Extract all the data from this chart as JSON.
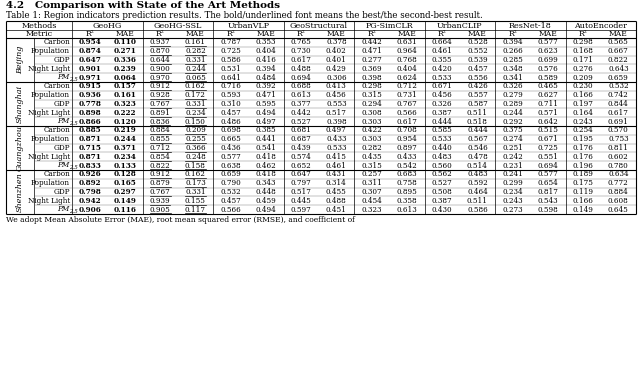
{
  "title_line1": "4.2   Comparison with State of the Art Methods",
  "caption": "Table 1: Region indicators prediction results. The bold/underlined font means the best/the second-best result.",
  "methods": [
    "GeoHG",
    "GeoHG-SSL",
    "UrbanVLP",
    "GeoStructural",
    "PG-SimCLR",
    "UrbanCLIP",
    "ResNet-18",
    "AutoEncoder"
  ],
  "cities": [
    "Beijing",
    "Shanghai",
    "Guangzhou",
    "Shenzhen"
  ],
  "indicators": [
    "Carbon",
    "Population",
    "GDP",
    "Night Light",
    "PM2.5"
  ],
  "data": {
    "Beijing": {
      "Carbon": {
        "GeoHG": [
          0.954,
          0.11
        ],
        "GeoHG-SSL": [
          0.937,
          0.161
        ],
        "UrbanVLP": [
          0.787,
          0.353
        ],
        "GeoStructural": [
          0.765,
          0.378
        ],
        "PG-SimCLR": [
          0.442,
          0.631
        ],
        "UrbanCLIP": [
          0.664,
          0.528
        ],
        "ResNet-18": [
          0.394,
          0.577
        ],
        "AutoEncoder": [
          0.298,
          0.565
        ]
      },
      "Population": {
        "GeoHG": [
          0.874,
          0.271
        ],
        "GeoHG-SSL": [
          0.87,
          0.282
        ],
        "UrbanVLP": [
          0.725,
          0.404
        ],
        "GeoStructural": [
          0.73,
          0.402
        ],
        "PG-SimCLR": [
          0.471,
          0.964
        ],
        "UrbanCLIP": [
          0.461,
          0.552
        ],
        "ResNet-18": [
          0.266,
          0.623
        ],
        "AutoEncoder": [
          0.168,
          0.667
        ]
      },
      "GDP": {
        "GeoHG": [
          0.647,
          0.336
        ],
        "GeoHG-SSL": [
          0.644,
          0.331
        ],
        "UrbanVLP": [
          0.586,
          0.416
        ],
        "GeoStructural": [
          0.617,
          0.401
        ],
        "PG-SimCLR": [
          0.277,
          0.768
        ],
        "UrbanCLIP": [
          0.355,
          0.539
        ],
        "ResNet-18": [
          0.285,
          0.699
        ],
        "AutoEncoder": [
          0.171,
          0.822
        ]
      },
      "Night Light": {
        "GeoHG": [
          0.901,
          0.239
        ],
        "GeoHG-SSL": [
          0.9,
          0.244
        ],
        "UrbanVLP": [
          0.531,
          0.394
        ],
        "GeoStructural": [
          0.488,
          0.429
        ],
        "PG-SimCLR": [
          0.369,
          0.404
        ],
        "UrbanCLIP": [
          0.42,
          0.457
        ],
        "ResNet-18": [
          0.348,
          0.576
        ],
        "AutoEncoder": [
          0.276,
          0.643
        ]
      },
      "PM2.5": {
        "GeoHG": [
          0.971,
          0.064
        ],
        "GeoHG-SSL": [
          0.97,
          0.065
        ],
        "UrbanVLP": [
          0.641,
          0.484
        ],
        "GeoStructural": [
          0.694,
          0.306
        ],
        "PG-SimCLR": [
          0.398,
          0.624
        ],
        "UrbanCLIP": [
          0.533,
          0.556
        ],
        "ResNet-18": [
          0.341,
          0.589
        ],
        "AutoEncoder": [
          0.209,
          0.659
        ]
      }
    },
    "Shanghai": {
      "Carbon": {
        "GeoHG": [
          0.915,
          0.157
        ],
        "GeoHG-SSL": [
          0.912,
          0.162
        ],
        "UrbanVLP": [
          0.716,
          0.392
        ],
        "GeoStructural": [
          0.688,
          0.413
        ],
        "PG-SimCLR": [
          0.298,
          0.712
        ],
        "UrbanCLIP": [
          0.671,
          0.426
        ],
        "ResNet-18": [
          0.326,
          0.465
        ],
        "AutoEncoder": [
          0.23,
          0.532
        ]
      },
      "Population": {
        "GeoHG": [
          0.936,
          0.161
        ],
        "GeoHG-SSL": [
          0.928,
          0.172
        ],
        "UrbanVLP": [
          0.593,
          0.471
        ],
        "GeoStructural": [
          0.613,
          0.456
        ],
        "PG-SimCLR": [
          0.315,
          0.731
        ],
        "UrbanCLIP": [
          0.456,
          0.557
        ],
        "ResNet-18": [
          0.279,
          0.627
        ],
        "AutoEncoder": [
          0.166,
          0.742
        ]
      },
      "GDP": {
        "GeoHG": [
          0.778,
          0.323
        ],
        "GeoHG-SSL": [
          0.767,
          0.331
        ],
        "UrbanVLP": [
          0.31,
          0.595
        ],
        "GeoStructural": [
          0.377,
          0.553
        ],
        "PG-SimCLR": [
          0.294,
          0.767
        ],
        "UrbanCLIP": [
          0.326,
          0.587
        ],
        "ResNet-18": [
          0.289,
          0.711
        ],
        "AutoEncoder": [
          0.197,
          0.844
        ]
      },
      "Night Light": {
        "GeoHG": [
          0.898,
          0.222
        ],
        "GeoHG-SSL": [
          0.891,
          0.234
        ],
        "UrbanVLP": [
          0.457,
          0.494
        ],
        "GeoStructural": [
          0.442,
          0.517
        ],
        "PG-SimCLR": [
          0.308,
          0.566
        ],
        "UrbanCLIP": [
          0.387,
          0.511
        ],
        "ResNet-18": [
          0.244,
          0.571
        ],
        "AutoEncoder": [
          0.164,
          0.617
        ]
      },
      "PM2.5": {
        "GeoHG": [
          0.866,
          0.12
        ],
        "GeoHG-SSL": [
          0.836,
          0.15
        ],
        "UrbanVLP": [
          0.486,
          0.497
        ],
        "GeoStructural": [
          0.527,
          0.398
        ],
        "PG-SimCLR": [
          0.303,
          0.617
        ],
        "UrbanCLIP": [
          0.444,
          0.518
        ],
        "ResNet-18": [
          0.292,
          0.642
        ],
        "AutoEncoder": [
          0.243,
          0.691
        ]
      }
    },
    "Guangzhou": {
      "Carbon": {
        "GeoHG": [
          0.885,
          0.219
        ],
        "GeoHG-SSL": [
          0.884,
          0.209
        ],
        "UrbanVLP": [
          0.698,
          0.385
        ],
        "GeoStructural": [
          0.681,
          0.497
        ],
        "PG-SimCLR": [
          0.422,
          0.708
        ],
        "UrbanCLIP": [
          0.585,
          0.444
        ],
        "ResNet-18": [
          0.375,
          0.515
        ],
        "AutoEncoder": [
          0.254,
          0.57
        ]
      },
      "Population": {
        "GeoHG": [
          0.871,
          0.244
        ],
        "GeoHG-SSL": [
          0.855,
          0.255
        ],
        "UrbanVLP": [
          0.665,
          0.441
        ],
        "GeoStructural": [
          0.687,
          0.433
        ],
        "PG-SimCLR": [
          0.303,
          0.954
        ],
        "UrbanCLIP": [
          0.533,
          0.567
        ],
        "ResNet-18": [
          0.274,
          0.671
        ],
        "AutoEncoder": [
          0.195,
          0.753
        ]
      },
      "GDP": {
        "GeoHG": [
          0.715,
          0.371
        ],
        "GeoHG-SSL": [
          0.712,
          0.366
        ],
        "UrbanVLP": [
          0.436,
          0.541
        ],
        "GeoStructural": [
          0.439,
          0.533
        ],
        "PG-SimCLR": [
          0.282,
          0.897
        ],
        "UrbanCLIP": [
          0.44,
          0.546
        ],
        "ResNet-18": [
          0.251,
          0.725
        ],
        "AutoEncoder": [
          0.176,
          0.811
        ]
      },
      "Night Light": {
        "GeoHG": [
          0.871,
          0.234
        ],
        "GeoHG-SSL": [
          0.854,
          0.248
        ],
        "UrbanVLP": [
          0.577,
          0.418
        ],
        "GeoStructural": [
          0.574,
          0.415
        ],
        "PG-SimCLR": [
          0.435,
          0.433
        ],
        "UrbanCLIP": [
          0.483,
          0.478
        ],
        "ResNet-18": [
          0.242,
          0.551
        ],
        "AutoEncoder": [
          0.176,
          0.602
        ]
      },
      "PM2.5": {
        "GeoHG": [
          0.833,
          0.133
        ],
        "GeoHG-SSL": [
          0.822,
          0.158
        ],
        "UrbanVLP": [
          0.638,
          0.462
        ],
        "GeoStructural": [
          0.652,
          0.461
        ],
        "PG-SimCLR": [
          0.315,
          0.542
        ],
        "UrbanCLIP": [
          0.56,
          0.514
        ],
        "ResNet-18": [
          0.231,
          0.694
        ],
        "AutoEncoder": [
          0.196,
          0.78
        ]
      }
    },
    "Shenzhen": {
      "Carbon": {
        "GeoHG": [
          0.926,
          0.128
        ],
        "GeoHG-SSL": [
          0.912,
          0.162
        ],
        "UrbanVLP": [
          0.659,
          0.418
        ],
        "GeoStructural": [
          0.647,
          0.431
        ],
        "PG-SimCLR": [
          0.257,
          0.683
        ],
        "UrbanCLIP": [
          0.562,
          0.483
        ],
        "ResNet-18": [
          0.241,
          0.577
        ],
        "AutoEncoder": [
          0.189,
          0.634
        ]
      },
      "Population": {
        "GeoHG": [
          0.892,
          0.165
        ],
        "GeoHG-SSL": [
          0.879,
          0.173
        ],
        "UrbanVLP": [
          0.79,
          0.343
        ],
        "GeoStructural": [
          0.797,
          0.314
        ],
        "PG-SimCLR": [
          0.311,
          0.758
        ],
        "UrbanCLIP": [
          0.527,
          0.592
        ],
        "ResNet-18": [
          0.299,
          0.654
        ],
        "AutoEncoder": [
          0.175,
          0.772
        ]
      },
      "GDP": {
        "GeoHG": [
          0.798,
          0.297
        ],
        "GeoHG-SSL": [
          0.767,
          0.331
        ],
        "UrbanVLP": [
          0.532,
          0.448
        ],
        "GeoStructural": [
          0.517,
          0.455
        ],
        "PG-SimCLR": [
          0.307,
          0.895
        ],
        "UrbanCLIP": [
          0.508,
          0.464
        ],
        "ResNet-18": [
          0.234,
          0.817
        ],
        "AutoEncoder": [
          0.119,
          0.884
        ]
      },
      "Night Light": {
        "GeoHG": [
          0.942,
          0.149
        ],
        "GeoHG-SSL": [
          0.939,
          0.155
        ],
        "UrbanVLP": [
          0.457,
          0.459
        ],
        "GeoStructural": [
          0.445,
          0.488
        ],
        "PG-SimCLR": [
          0.454,
          0.358
        ],
        "UrbanCLIP": [
          0.387,
          0.511
        ],
        "ResNet-18": [
          0.243,
          0.543
        ],
        "AutoEncoder": [
          0.166,
          0.608
        ]
      },
      "PM2.5": {
        "GeoHG": [
          0.906,
          0.116
        ],
        "GeoHG-SSL": [
          0.905,
          0.117
        ],
        "UrbanVLP": [
          0.566,
          0.494
        ],
        "GeoStructural": [
          0.597,
          0.451
        ],
        "PG-SimCLR": [
          0.323,
          0.613
        ],
        "UrbanCLIP": [
          0.43,
          0.586
        ],
        "ResNet-18": [
          0.273,
          0.598
        ],
        "AutoEncoder": [
          0.149,
          0.645
        ]
      }
    }
  },
  "footer": "We adopt Mean Absolute Error (MAE), root mean squared error (RMSE), and coefficient of",
  "bg_color": "#ffffff",
  "font_size": 5.2,
  "header_font_size": 5.8
}
